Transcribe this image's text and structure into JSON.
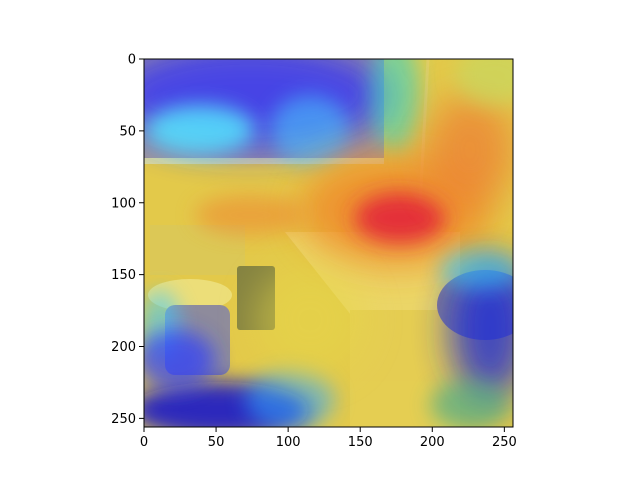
{
  "figure": {
    "background": "#ffffff",
    "image_size": [
      256,
      256
    ],
    "axes": {
      "xlim": [
        0,
        256
      ],
      "ylim": [
        256,
        0
      ],
      "x_ticks": [
        0,
        50,
        100,
        150,
        200,
        250
      ],
      "y_ticks": [
        0,
        50,
        100,
        150,
        200,
        250
      ],
      "x_tick_labels": [
        "0",
        "50",
        "100",
        "150",
        "200",
        "250"
      ],
      "y_tick_labels": [
        "0",
        "50",
        "100",
        "150",
        "200",
        "250"
      ]
    },
    "overlay": {
      "type": "heatmap",
      "colormap": "jet",
      "description_hidden": true,
      "peak_region_center": [
        175,
        110
      ],
      "low_regions": [
        "top-center",
        "bottom-left",
        "right"
      ]
    },
    "colors": {
      "jet_blue": "#1a1aff",
      "jet_cyan": "#44e6ff",
      "jet_yellow": "#e8e04a",
      "jet_orange": "#f08a2a",
      "jet_red": "#e8303a"
    }
  }
}
